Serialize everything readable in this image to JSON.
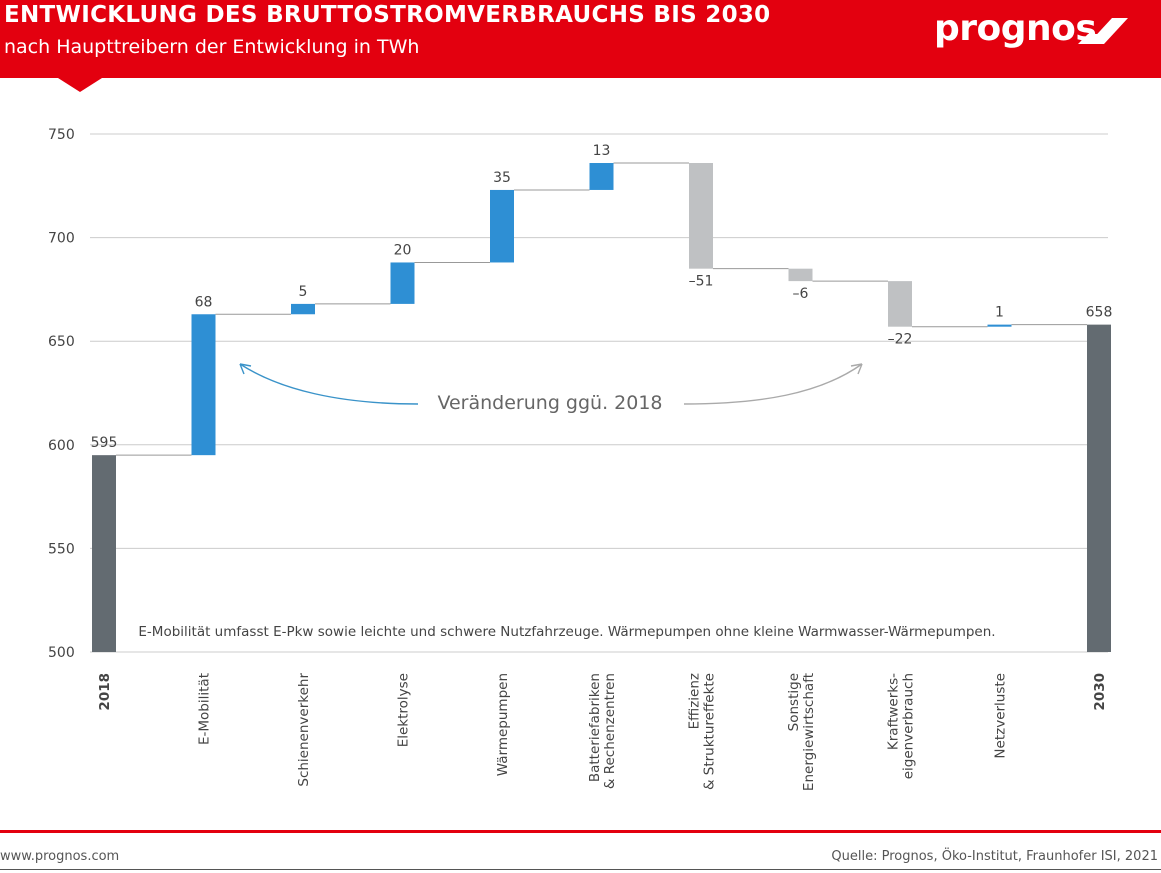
{
  "header": {
    "title": "ENTWICKLUNG DES BRUTTOSTROMVERBRAUCHS BIS 2030",
    "subtitle": "nach Haupttreibern der Entwicklung in TWh",
    "logo_text": "prognos",
    "background_color": "#e3000f"
  },
  "footer": {
    "website": "www.prognos.com",
    "source": "Quelle: Prognos, Öko-Institut, Fraunhofer ISI, 2021"
  },
  "chart_data": {
    "type": "bar",
    "subtype": "waterfall",
    "title": "ENTWICKLUNG DES BRUTTOSTROMVERBRAUCHS BIS 2030",
    "subtitle": "nach Haupttreibern der Entwicklung in TWh",
    "ylim": [
      500,
      750
    ],
    "yticks": [
      500,
      550,
      600,
      650,
      700,
      750
    ],
    "grid": true,
    "categories": [
      {
        "lines": [
          "2018"
        ],
        "value": 595,
        "kind": "total",
        "label": "595"
      },
      {
        "lines": [
          "E-Mobilität"
        ],
        "value": 68,
        "kind": "increase",
        "label": "68"
      },
      {
        "lines": [
          "Schienenverkehr"
        ],
        "value": 5,
        "kind": "increase",
        "label": "5"
      },
      {
        "lines": [
          "Elektrolyse"
        ],
        "value": 20,
        "kind": "increase",
        "label": "20"
      },
      {
        "lines": [
          "Wärmepumpen"
        ],
        "value": 35,
        "kind": "increase",
        "label": "35"
      },
      {
        "lines": [
          "Batteriefabriken",
          "& Rechenzentren"
        ],
        "value": 13,
        "kind": "increase",
        "label": "13"
      },
      {
        "lines": [
          "Effizienz",
          "& Struktureffekte"
        ],
        "value": -51,
        "kind": "decrease",
        "label": "–51"
      },
      {
        "lines": [
          "Sonstige",
          "Energiewirtschaft"
        ],
        "value": -6,
        "kind": "decrease",
        "label": "–6"
      },
      {
        "lines": [
          "Kraftwerks-",
          "eigenverbrauch"
        ],
        "value": -22,
        "kind": "decrease",
        "label": "–22"
      },
      {
        "lines": [
          "Netzverluste"
        ],
        "value": 1,
        "kind": "increase",
        "label": "1"
      },
      {
        "lines": [
          "2030"
        ],
        "value": 658,
        "kind": "total",
        "label": "658"
      }
    ],
    "colors": {
      "total": "#636b71",
      "increase": "#2e8fd4",
      "decrease": "#bfc1c3",
      "grid": "#cccccc",
      "axis_text": "#444444",
      "arrow_left": "#3a93c9",
      "arrow_right": "#aaaaaa"
    },
    "annotation": "Veränderung ggü. 2018",
    "footnote": "E-Mobilität umfasst E-Pkw sowie leichte und schwere Nutzfahrzeuge. Wärmepumpen ohne kleine Warmwasser-Wärmepumpen."
  }
}
